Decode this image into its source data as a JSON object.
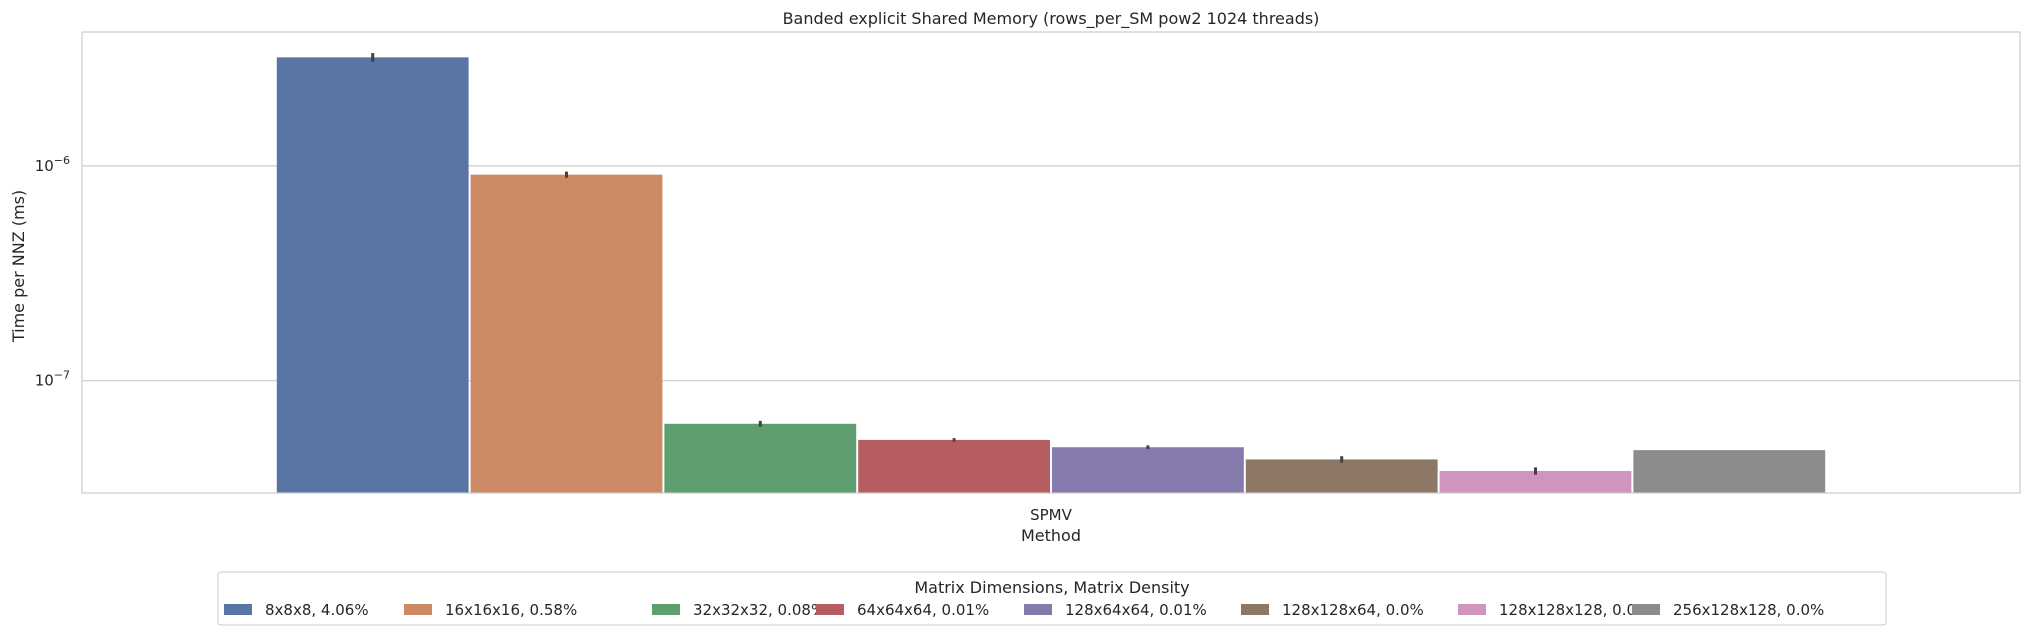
{
  "chart_data": {
    "type": "bar",
    "title": "Banded explicit Shared Memory (rows_per_SM pow2 1024 threads)",
    "xlabel": "Method",
    "ylabel": "Time per NNZ (ms)",
    "categories": [
      "SPMV"
    ],
    "yscale": "log",
    "ylim": [
      3e-08,
      4.2e-06
    ],
    "ytick_values": [
      1e-07,
      1e-06
    ],
    "ytick_labels": [
      {
        "base": "10",
        "exp": "−7"
      },
      {
        "base": "10",
        "exp": "−6"
      }
    ],
    "grid": "horizontal",
    "legend_position": "bottom-center",
    "legend_title": "Matrix Dimensions, Matrix Density",
    "series": [
      {
        "name": "8x8x8, 4.06%",
        "values": [
          3.2e-06
        ],
        "err": [
          1.5e-07
        ],
        "color": "#5975a4"
      },
      {
        "name": "16x16x16, 0.58%",
        "values": [
          9.1e-07
        ],
        "err": [
          3e-08
        ],
        "color": "#cc8963"
      },
      {
        "name": "32x32x32, 0.08%",
        "values": [
          6.3e-08
        ],
        "err": [
          2e-09
        ],
        "color": "#5f9e6e"
      },
      {
        "name": "64x64x64, 0.01%",
        "values": [
          5.3e-08
        ],
        "err": [
          1e-09
        ],
        "color": "#b55d60"
      },
      {
        "name": "128x64x64, 0.01%",
        "values": [
          4.9e-08
        ],
        "err": [
          1e-09
        ],
        "color": "#857aab"
      },
      {
        "name": "128x128x64, 0.0%",
        "values": [
          4.3e-08
        ],
        "err": [
          1.5e-09
        ],
        "color": "#8d7866"
      },
      {
        "name": "128x128x128, 0.0%",
        "values": [
          3.8e-08
        ],
        "err": [
          1.5e-09
        ],
        "color": "#d095bf"
      },
      {
        "name": "256x128x128, 0.0%",
        "values": [
          4.75e-08
        ],
        "err": [
          0.0
        ],
        "color": "#8c8c8c"
      }
    ]
  }
}
